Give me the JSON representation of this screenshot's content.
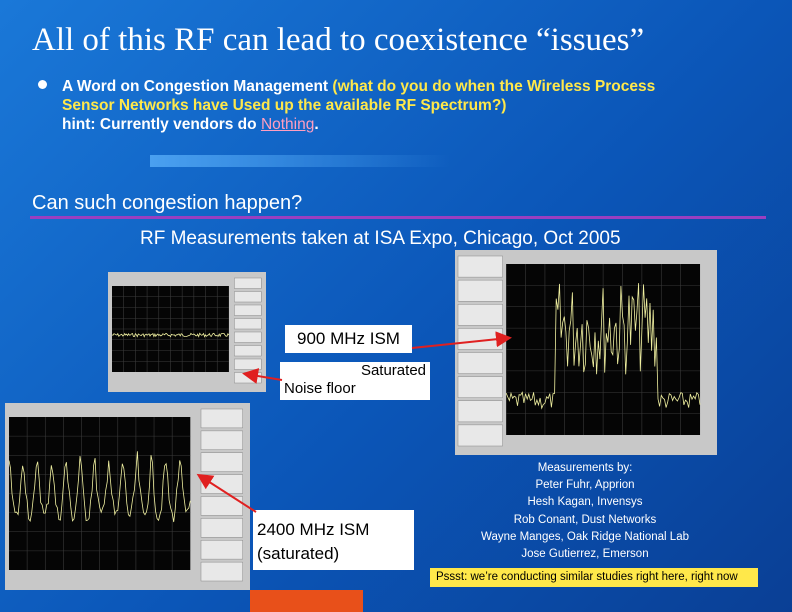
{
  "title": "All of this RF can lead to coexistence “issues”",
  "bullet": {
    "lead": "A Word on Congestion Management",
    "question": "(what do you do when the Wireless Process Sensor Networks have Used up the available RF Spectrum?)",
    "hint": "hint:  Currently vendors do",
    "answer": "Nothing",
    "end": "."
  },
  "question": "Can such congestion happen?",
  "subtitle": "RF Measurements taken at ISA Expo, Chicago, Oct 2005",
  "labels": {
    "band900": "900 MHz ISM",
    "saturated": "Saturated",
    "noise_floor": "Noise floor",
    "band2400": "2400 MHz ISM",
    "band2400_note": "(saturated)"
  },
  "credits": {
    "heading": "Measurements by:",
    "names": [
      "Peter Fuhr, Apprion",
      "Hesh Kagan, Invensys",
      "Rob Conant, Dust Networks",
      "Wayne Manges, Oak Ridge National Lab",
      "Jose Gutierrez, Emerson"
    ]
  },
  "footnote": "Pssst:  we’re conducting similar studies right here, right now"
}
